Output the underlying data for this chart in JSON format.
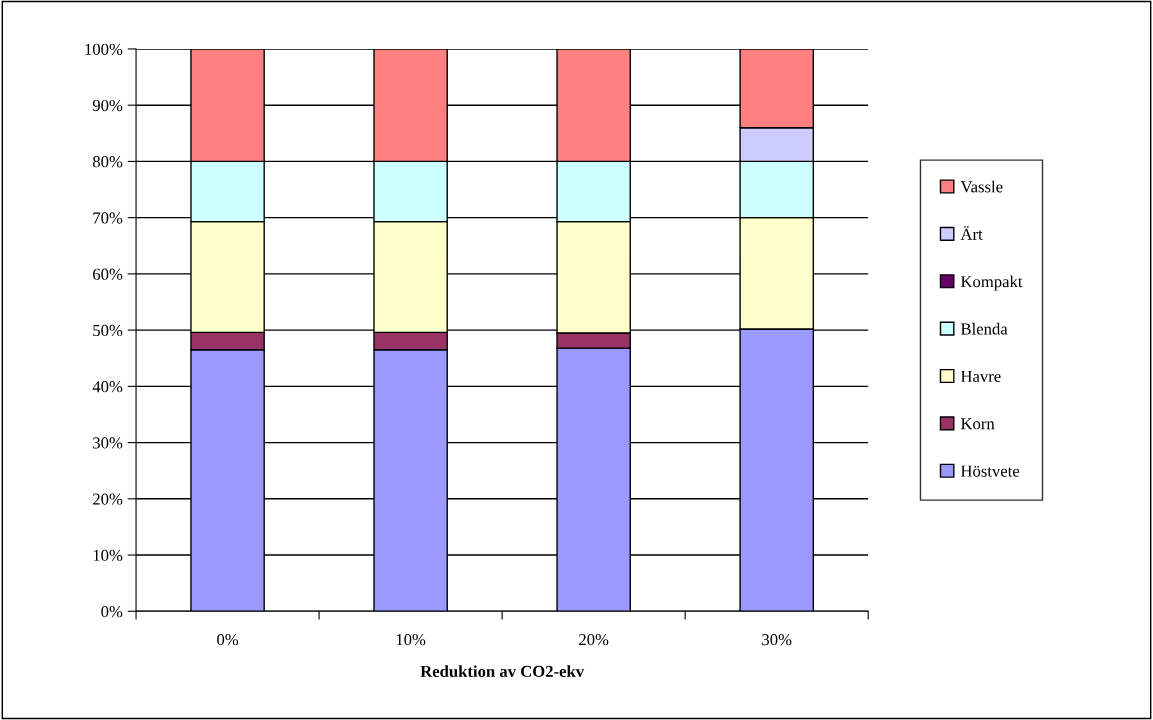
{
  "chart_data": {
    "type": "bar",
    "stacked": true,
    "xlabel": "Reduktion av CO2-ekv",
    "categories": [
      "0%",
      "10%",
      "20%",
      "30%"
    ],
    "series": [
      {
        "name": "Höstvete",
        "color": "#9999ff",
        "values": [
          46.5,
          46.5,
          46.8,
          50.2
        ]
      },
      {
        "name": "Korn",
        "color": "#993366",
        "values": [
          3.1,
          3.1,
          2.7,
          0
        ]
      },
      {
        "name": "Havre",
        "color": "#ffffcc",
        "values": [
          19.7,
          19.7,
          19.8,
          19.8
        ]
      },
      {
        "name": "Blenda",
        "color": "#ccffff",
        "values": [
          10.7,
          10.7,
          10.7,
          10
        ]
      },
      {
        "name": "Kompakt",
        "color": "#660066",
        "values": [
          0,
          0,
          0,
          0
        ]
      },
      {
        "name": "Ärt",
        "color": "#ccccff",
        "values": [
          0,
          0,
          0,
          6
        ]
      },
      {
        "name": "Vassle",
        "color": "#ff8080",
        "values": [
          20,
          20,
          20,
          14
        ]
      }
    ],
    "ylim": [
      0,
      100
    ],
    "yticks": [
      {
        "value": 0,
        "label": "0%"
      },
      {
        "value": 10,
        "label": "10%"
      },
      {
        "value": 20,
        "label": "20%"
      },
      {
        "value": 30,
        "label": "30%"
      },
      {
        "value": 40,
        "label": "40%"
      },
      {
        "value": 50,
        "label": "50%"
      },
      {
        "value": 60,
        "label": "60%"
      },
      {
        "value": 70,
        "label": "70%"
      },
      {
        "value": 80,
        "label": "80%"
      },
      {
        "value": 90,
        "label": "90%"
      },
      {
        "value": 100,
        "label": "100%"
      }
    ],
    "grid": "y",
    "legend": "right"
  }
}
